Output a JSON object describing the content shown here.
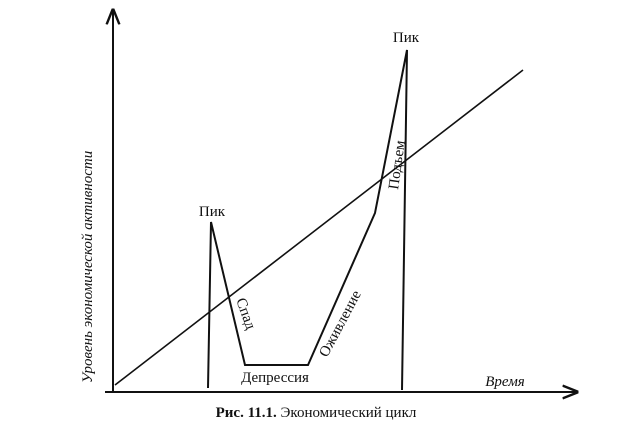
{
  "axes": {
    "y_label": "Уровень экономической активности",
    "x_label": "Время"
  },
  "phases": {
    "peak_1": "Пик",
    "decline": "Спад",
    "depression": "Депрессия",
    "recovery": "Оживление",
    "rise": "Подъем",
    "peak_2": "Пик"
  },
  "caption": {
    "number": "Рис. 11.1.",
    "title": "Экономический цикл"
  }
}
